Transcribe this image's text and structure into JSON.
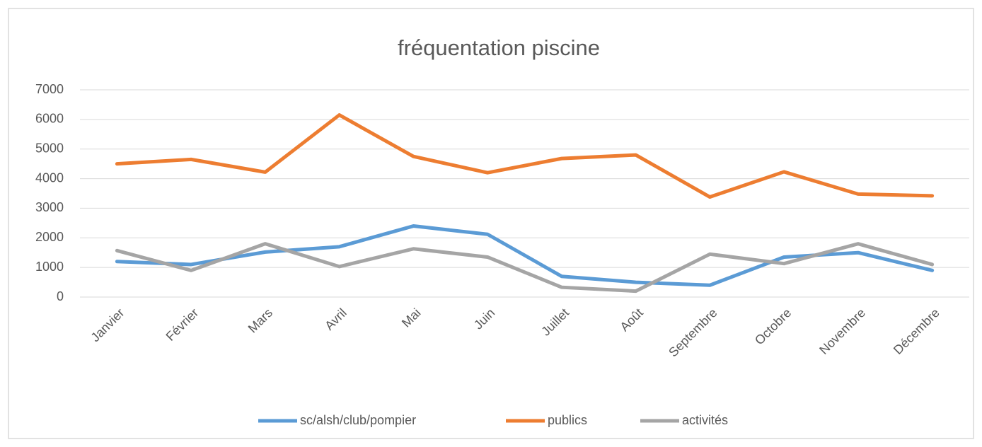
{
  "chart_data": {
    "type": "line",
    "title": "fréquentation piscine",
    "categories": [
      "Janvier",
      "Février",
      "Mars",
      "Avril",
      "Mai",
      "Juin",
      "Juillet",
      "Août",
      "Septembre",
      "Octobre",
      "Novembre",
      "Décembre"
    ],
    "series": [
      {
        "name": "sc/alsh/club/pompier",
        "color": "#5b9bd5",
        "values": [
          1200,
          1100,
          1520,
          1700,
          2400,
          2120,
          700,
          500,
          400,
          1350,
          1500,
          900
        ]
      },
      {
        "name": "publics",
        "color": "#ed7d31",
        "values": [
          4500,
          4650,
          4220,
          6150,
          4750,
          4200,
          4680,
          4800,
          3380,
          4230,
          3480,
          3420
        ]
      },
      {
        "name": "activités",
        "color": "#a5a5a5",
        "values": [
          1570,
          900,
          1800,
          1030,
          1630,
          1350,
          330,
          200,
          1450,
          1130,
          1800,
          1100
        ]
      }
    ],
    "ylim": [
      0,
      7000
    ],
    "yticks": [
      0,
      1000,
      2000,
      3000,
      4000,
      5000,
      6000,
      7000
    ],
    "grid": true,
    "legend": "bottom"
  }
}
